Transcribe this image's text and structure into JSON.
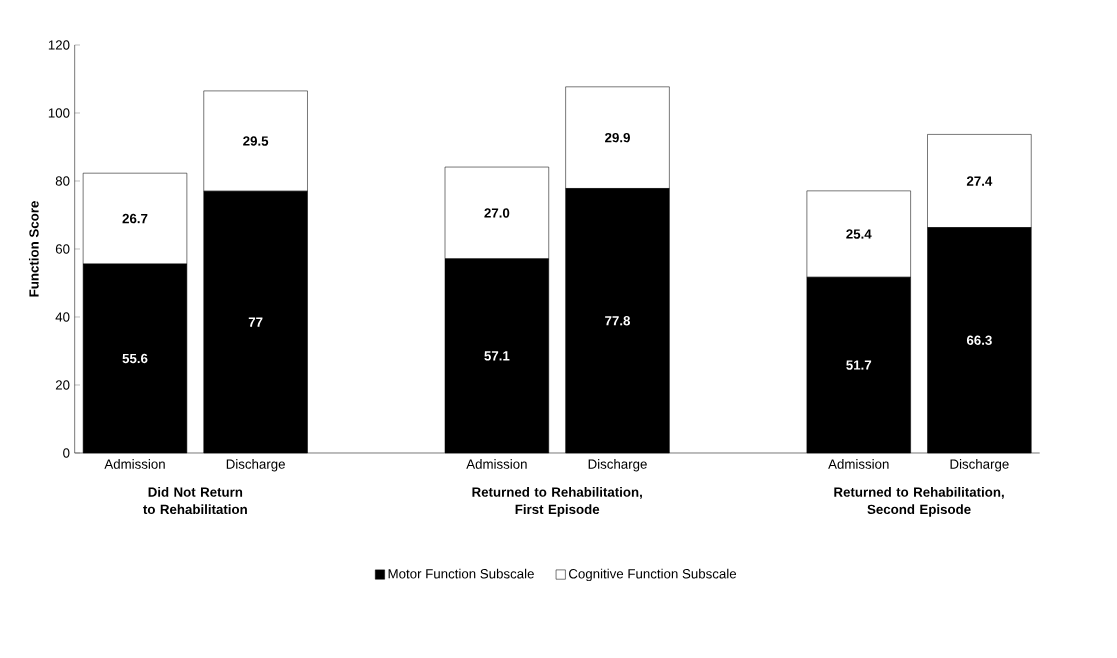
{
  "chart_data": {
    "type": "bar",
    "stacked": true,
    "ylabel": "Function Score",
    "categories": [
      "Admission",
      "Discharge",
      null,
      "Admission",
      "Discharge",
      null,
      "Admission",
      "Discharge"
    ],
    "series": [
      {
        "name": "Motor Function Subscale",
        "color": "#000000",
        "values": [
          55.6,
          77,
          null,
          57.1,
          77.8,
          null,
          51.7,
          66.3
        ],
        "value_labels": [
          "55.6",
          "77",
          null,
          "57.1",
          "77.8",
          null,
          "51.7",
          "66.3"
        ]
      },
      {
        "name": "Cognitive Function Subscale",
        "color": "#ffffff",
        "values": [
          26.7,
          29.5,
          null,
          27.0,
          29.9,
          null,
          25.4,
          27.4
        ],
        "value_labels": [
          "26.7",
          "29.5",
          null,
          "27.0",
          "29.9",
          null,
          "25.4",
          "27.4"
        ]
      }
    ],
    "annotations": [
      "Did Not Return to Rehabilitation",
      "Returned to Rehabilitation, First Episode",
      "Returned to Rehabilitation, Second Episode"
    ],
    "ylim": [
      0,
      120
    ],
    "yticks": [
      0,
      20,
      40,
      60,
      80,
      100,
      120
    ],
    "legend": "bottom",
    "grid": false
  }
}
